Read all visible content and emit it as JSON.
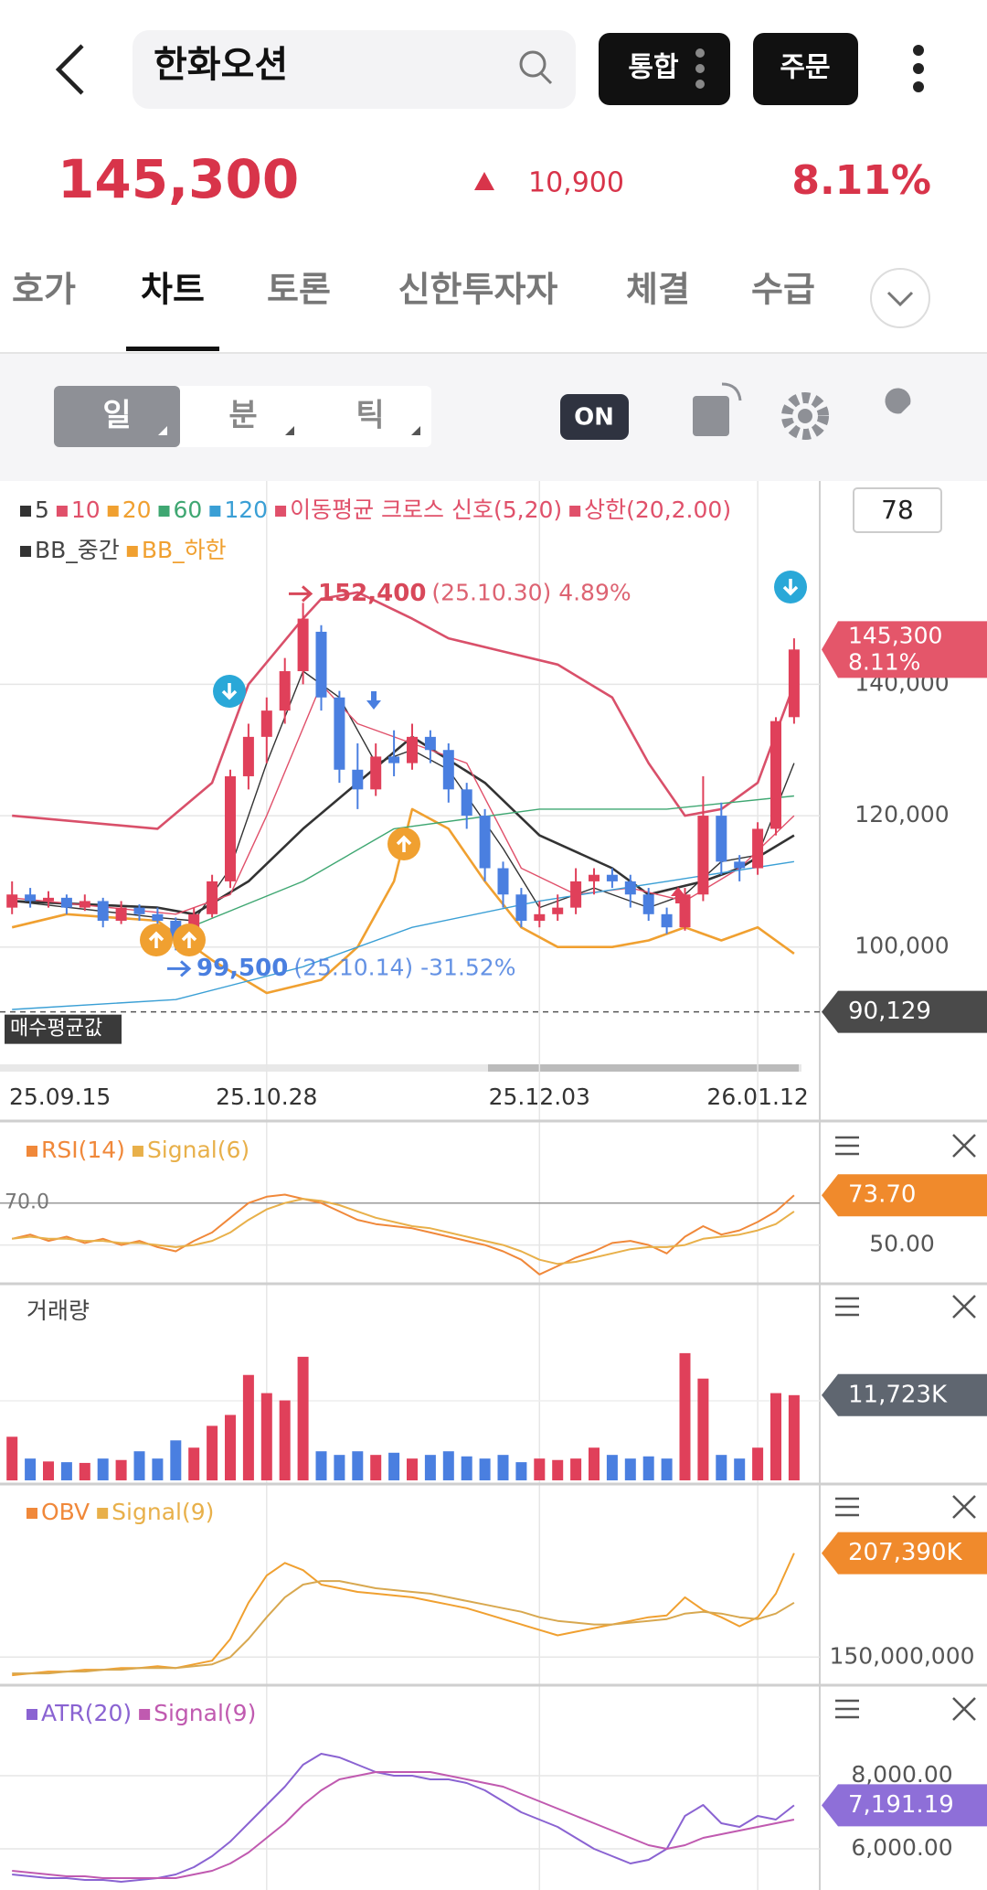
{
  "header": {
    "title": "한화오션",
    "buttons": [
      "통합",
      "주문"
    ]
  },
  "quote": {
    "price": "145,300",
    "change": "10,900",
    "rate": "8.11%"
  },
  "tabs": [
    "호가",
    "차트",
    "토론",
    "신한투자자",
    "체결",
    "수급"
  ],
  "toolbar": {
    "periods": [
      "일",
      "분",
      "틱"
    ],
    "toggle": "ON"
  },
  "badge": "78",
  "chart_data": [
    {
      "type": "candlestick",
      "legend": [
        {
          "name": "5",
          "color": "#333333"
        },
        {
          "name": "10",
          "color": "#e0506a"
        },
        {
          "name": "20",
          "color": "#f0a030"
        },
        {
          "name": "60",
          "color": "#3fa772"
        },
        {
          "name": "120",
          "color": "#3a9fd5"
        },
        {
          "name": "이동평균 크로스 신호(5,20)",
          "color": "#e0506a"
        },
        {
          "name": "상한(20,2.00)",
          "color": "#e0506a"
        },
        {
          "name": "BB_중간",
          "color": "#333333"
        },
        {
          "name": "BB_하한",
          "color": "#f0a030"
        }
      ],
      "categories": [
        "25.09.15",
        null,
        null,
        null,
        null,
        null,
        null,
        null,
        null,
        null,
        null,
        null,
        null,
        null,
        "25.10.28",
        null,
        null,
        null,
        null,
        null,
        null,
        null,
        null,
        null,
        null,
        null,
        null,
        null,
        null,
        "25.12.03",
        null,
        null,
        null,
        null,
        null,
        null,
        null,
        null,
        null,
        null,
        null,
        "26.01.12",
        null,
        null
      ],
      "open": [
        106000,
        108000,
        107000,
        107500,
        106000,
        107000,
        104000,
        106000,
        105000,
        104000,
        101000,
        105000,
        110000,
        126000,
        132000,
        136000,
        142000,
        148000,
        138000,
        127000,
        124000,
        129000,
        128000,
        132000,
        130000,
        124000,
        120000,
        112000,
        108000,
        104000,
        105000,
        106000,
        110000,
        111000,
        110000,
        108000,
        105000,
        103000,
        108000,
        120000,
        113000,
        112000,
        118000,
        135000
      ],
      "high": [
        110000,
        109000,
        108500,
        108000,
        108000,
        107500,
        107000,
        106500,
        106000,
        104500,
        106000,
        111000,
        127000,
        134000,
        138000,
        144000,
        152400,
        149000,
        139000,
        131000,
        131000,
        133000,
        134000,
        133000,
        131000,
        125000,
        121000,
        113000,
        109000,
        107000,
        108000,
        112000,
        112000,
        112000,
        111000,
        109000,
        106000,
        109000,
        126000,
        122000,
        114000,
        119000,
        135000,
        147000
      ],
      "low": [
        105000,
        106000,
        106000,
        105000,
        105500,
        103000,
        103500,
        104000,
        103000,
        99500,
        100500,
        104500,
        109000,
        124000,
        128000,
        134000,
        140000,
        136000,
        125000,
        121000,
        123000,
        126000,
        127000,
        128000,
        122000,
        118000,
        110000,
        106000,
        103000,
        103000,
        104000,
        105000,
        108000,
        109000,
        106000,
        104000,
        102000,
        102500,
        107000,
        111000,
        110000,
        111000,
        117000,
        134000
      ],
      "close": [
        108000,
        107000,
        107500,
        106000,
        107000,
        104000,
        106000,
        105000,
        104000,
        101000,
        105000,
        110000,
        126000,
        132000,
        136000,
        142000,
        150000,
        138000,
        127000,
        124000,
        129000,
        128000,
        132000,
        130000,
        124000,
        120000,
        112000,
        108000,
        104000,
        105000,
        106000,
        110000,
        111000,
        110000,
        108000,
        105000,
        103000,
        108000,
        120000,
        113000,
        112000,
        118000,
        134400,
        145300
      ],
      "up_color": "#e0405a",
      "down_color": "#4a7fe0",
      "lines": [
        {
          "color": "#d9506a",
          "x": [
            0,
            8,
            11,
            13,
            16,
            17,
            19,
            22,
            24,
            27,
            30,
            33,
            35,
            37,
            39,
            41,
            43
          ],
          "values": [
            120000,
            118000,
            125000,
            140000,
            150000,
            153000,
            154000,
            150000,
            147000,
            145000,
            143000,
            138000,
            128000,
            120000,
            121000,
            125000,
            140000
          ]
        },
        {
          "color": "#333333",
          "x": [
            0,
            8,
            10,
            13,
            16,
            19,
            22,
            26,
            29,
            33,
            35,
            38,
            40,
            43
          ],
          "values": [
            107000,
            106000,
            105000,
            110000,
            118000,
            125000,
            132000,
            125000,
            117000,
            112000,
            108000,
            110000,
            112000,
            117000
          ]
        },
        {
          "color": "#f0a030",
          "x": [
            0,
            3,
            8,
            11,
            14,
            17,
            19,
            21,
            22,
            24,
            26,
            28,
            30,
            33,
            35,
            37,
            39,
            41,
            43
          ],
          "values": [
            103000,
            105000,
            104000,
            98000,
            93000,
            95000,
            100000,
            110000,
            121000,
            118000,
            110000,
            103000,
            100000,
            100000,
            101000,
            103000,
            101000,
            103000,
            99000
          ]
        },
        {
          "color": "#333333",
          "x": [
            0,
            8,
            10,
            12,
            14,
            16,
            18,
            20,
            22,
            24,
            27,
            29,
            32,
            35,
            37,
            39,
            41,
            43
          ],
          "values": [
            107000,
            104500,
            104000,
            112000,
            128000,
            142000,
            138000,
            128000,
            130000,
            127000,
            115000,
            106000,
            109000,
            106000,
            108000,
            113000,
            114000,
            128000
          ]
        },
        {
          "color": "#e0506a",
          "x": [
            0,
            9,
            12,
            14,
            17,
            19,
            22,
            25,
            28,
            31,
            34,
            37,
            40,
            43
          ],
          "values": [
            107500,
            105000,
            108000,
            120000,
            140000,
            134000,
            131000,
            128000,
            112000,
            108000,
            109000,
            107000,
            112000,
            120000
          ]
        },
        {
          "color": "#3fa772",
          "x": [
            8,
            16,
            21,
            29,
            36,
            43
          ],
          "values": [
            101000,
            110000,
            118000,
            121000,
            121000,
            123000
          ]
        },
        {
          "color": "#3a9fd5",
          "x": [
            0,
            9,
            16,
            22,
            29,
            36,
            43
          ],
          "values": [
            90500,
            92000,
            97000,
            103000,
            107000,
            110000,
            113000
          ]
        }
      ],
      "ylim": [
        82700,
        171100
      ],
      "yticks": [
        {
          "value": 100000,
          "label": "100,000"
        },
        {
          "value": 120000,
          "label": "120,000"
        },
        {
          "value": 140000,
          "label": "140,000"
        }
      ],
      "annotations": [
        {
          "value": 152400,
          "label": "152,400",
          "detail": "(25.10.30) 4.89%",
          "color": "#d8485a"
        },
        {
          "value": 99500,
          "label": "99,500",
          "detail": "(25.10.14) -31.52%",
          "color": "#4a7fe0"
        }
      ],
      "avg": {
        "label": "매수평균값",
        "value": 90129,
        "value_label": "90,129"
      },
      "last_labels": [
        "145,300",
        "8.11%"
      ]
    },
    {
      "type": "line",
      "legend": [
        {
          "name": "RSI(14)",
          "color": "#f0883a"
        },
        {
          "name": "Signal(6)",
          "color": "#e8b04a"
        }
      ],
      "series": [
        {
          "color": "#f0883a",
          "values": [
            53,
            55,
            52,
            54,
            51,
            53,
            50,
            52,
            49,
            47,
            52,
            56,
            63,
            70,
            73,
            74,
            72,
            70,
            66,
            62,
            60,
            59,
            58,
            56,
            54,
            52,
            50,
            47,
            43,
            36,
            40,
            44,
            47,
            51,
            52,
            50,
            46,
            54,
            59,
            55,
            57,
            61,
            66,
            73.7
          ]
        },
        {
          "color": "#e8b04a",
          "values": [
            53,
            54,
            53,
            53,
            52,
            52,
            51,
            51,
            50,
            49,
            50,
            52,
            56,
            62,
            67,
            70,
            72,
            71,
            69,
            66,
            63,
            61,
            59,
            58,
            56,
            54,
            52,
            50,
            47,
            43,
            41,
            42,
            44,
            46,
            48,
            49,
            49,
            50,
            53,
            54,
            55,
            57,
            60,
            66
          ]
        }
      ],
      "ylim": [
        32,
        106
      ],
      "yticks": [
        {
          "value": 70,
          "label": "70.0"
        },
        {
          "value": 50,
          "label": "50.00"
        }
      ],
      "value_label": "73.70",
      "tag_color": "#f08a2c"
    },
    {
      "type": "bar",
      "legend": [
        {
          "name": "거래량"
        }
      ],
      "values": [
        6000,
        3000,
        2600,
        2500,
        2400,
        3000,
        2800,
        4000,
        3000,
        5500,
        4500,
        7500,
        9000,
        14500,
        12000,
        11000,
        17000,
        4000,
        3500,
        4000,
        3500,
        3800,
        3000,
        3500,
        4000,
        3300,
        3000,
        3500,
        2500,
        3000,
        2800,
        3000,
        4500,
        3500,
        3000,
        3300,
        3000,
        17500,
        14000,
        3500,
        3000,
        4500,
        12000,
        11723
      ],
      "ylim": [
        0,
        20000
      ],
      "value_label": "11,723K",
      "tag_color": "#5f6670"
    },
    {
      "type": "line",
      "legend": [
        {
          "name": "OBV",
          "color": "#f0883a"
        },
        {
          "name": "Signal(9)",
          "color": "#e8b04a"
        }
      ],
      "series": [
        {
          "color": "#f0a030",
          "values": [
            140000000,
            141000000,
            142000000,
            142000000,
            143000000,
            143000000,
            144000000,
            144000000,
            145000000,
            144000000,
            146000000,
            148000000,
            160000000,
            180000000,
            195000000,
            202000000,
            198000000,
            190000000,
            188000000,
            186000000,
            185000000,
            184000000,
            183000000,
            181000000,
            179000000,
            177000000,
            174000000,
            171000000,
            168000000,
            165000000,
            162000000,
            164000000,
            166000000,
            168000000,
            170000000,
            172000000,
            173000000,
            183000000,
            176000000,
            172000000,
            167000000,
            172000000,
            185000000,
            207390000
          ]
        },
        {
          "color": "#d8a850",
          "values": [
            141000000,
            141000000,
            141000000,
            142000000,
            142000000,
            143000000,
            143000000,
            144000000,
            144000000,
            144000000,
            145000000,
            146000000,
            150000000,
            160000000,
            172000000,
            183000000,
            190000000,
            192000000,
            192000000,
            190000000,
            188000000,
            187000000,
            186000000,
            185000000,
            183000000,
            181000000,
            179000000,
            177000000,
            175000000,
            172000000,
            170000000,
            169000000,
            168000000,
            168000000,
            169000000,
            170000000,
            171000000,
            174000000,
            175000000,
            174000000,
            172000000,
            171000000,
            174000000,
            180000000
          ]
        }
      ],
      "ylim": [
        135000000,
        242000000
      ],
      "yticks": [
        {
          "value": 150000000,
          "label": "150,000,000"
        }
      ],
      "value_label": "207,390K",
      "tag_color": "#f08a2c"
    },
    {
      "type": "line",
      "legend": [
        {
          "name": "ATR(20)",
          "color": "#8a63d2"
        },
        {
          "name": "Signal(9)",
          "color": "#c05ab0"
        }
      ],
      "series": [
        {
          "color": "#8a63d2",
          "values": [
            5300,
            5250,
            5200,
            5200,
            5150,
            5150,
            5100,
            5150,
            5200,
            5300,
            5500,
            5800,
            6200,
            6700,
            7200,
            7700,
            8300,
            8600,
            8500,
            8300,
            8100,
            8000,
            8000,
            7900,
            7900,
            7800,
            7600,
            7300,
            7000,
            6800,
            6600,
            6300,
            6000,
            5800,
            5600,
            5700,
            6000,
            6900,
            7200,
            6700,
            6600,
            6900,
            6800,
            7191.19
          ]
        },
        {
          "color": "#c05ab0",
          "values": [
            5400,
            5350,
            5300,
            5250,
            5250,
            5200,
            5200,
            5200,
            5200,
            5200,
            5300,
            5400,
            5600,
            5900,
            6300,
            6700,
            7200,
            7600,
            7900,
            8000,
            8100,
            8100,
            8100,
            8100,
            8000,
            7900,
            7800,
            7700,
            7500,
            7300,
            7100,
            6900,
            6700,
            6500,
            6300,
            6100,
            6000,
            6100,
            6300,
            6400,
            6500,
            6600,
            6700,
            6800
          ]
        }
      ],
      "ylim": [
        4875,
        10300
      ],
      "yticks": [
        {
          "value": 8000,
          "label": "8,000.00"
        },
        {
          "value": 6000,
          "label": "6,000.00"
        }
      ],
      "value_label": "7,191.19",
      "tag_color": "#8e6fd8"
    }
  ]
}
